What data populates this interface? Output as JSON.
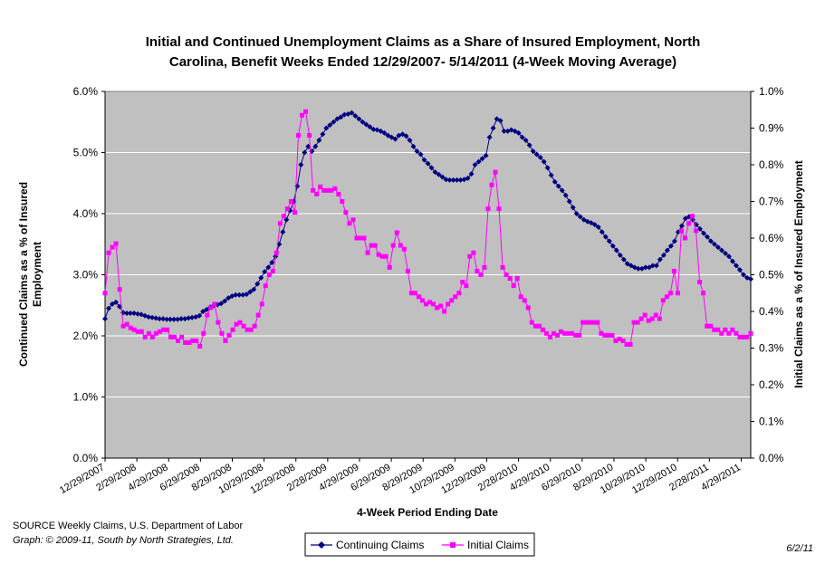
{
  "colors": {
    "plot_bg": "#c0c0c0",
    "continuing": "#000080",
    "initial": "#ff00ff",
    "grid": "#ffffff"
  },
  "chart_data": {
    "type": "line",
    "title": [
      "Initial and Continued Unemployment Claims as a Share of Insured Employment, North",
      "Carolina, Benefit Weeks Ended 12/29/2007- 5/14/2011 (4-Week Moving Average)"
    ],
    "xlabel": "4-Week Period Ending Date",
    "ylabel_left": [
      "Continued Claims as a % of Insured",
      "Employment"
    ],
    "ylabel_right": "Initial Claims as a % of Insured Employment",
    "ylim_left": [
      0,
      6
    ],
    "ylim_right": [
      0,
      1
    ],
    "left_ticks": [
      "0.0%",
      "1.0%",
      "2.0%",
      "3.0%",
      "4.0%",
      "5.0%",
      "6.0%"
    ],
    "right_ticks": [
      "0.0%",
      "0.1%",
      "0.2%",
      "0.3%",
      "0.4%",
      "0.5%",
      "0.6%",
      "0.7%",
      "0.8%",
      "0.9%",
      "1.0%"
    ],
    "x_tick_labels": [
      "12/29/2007",
      "2/29/2008",
      "4/29/2008",
      "6/29/2008",
      "8/29/2008",
      "10/29/2008",
      "12/29/2008",
      "2/28/2009",
      "4/29/2009",
      "6/29/2009",
      "8/29/2009",
      "10/29/2009",
      "12/29/2009",
      "2/28/2010",
      "4/29/2010",
      "6/29/2010",
      "8/29/2010",
      "10/29/2010",
      "12/29/2010",
      "2/28/2011",
      "4/29/2011"
    ],
    "x_start": "12/29/2007",
    "x_end": "5/14/2011",
    "grid": true,
    "legend_position": "bottom-center",
    "series": [
      {
        "name": "Continuing Claims",
        "axis": "left",
        "marker": "diamond",
        "values": [
          2.28,
          2.45,
          2.52,
          2.55,
          2.48,
          2.38,
          2.37,
          2.37,
          2.37,
          2.36,
          2.35,
          2.33,
          2.31,
          2.3,
          2.29,
          2.28,
          2.28,
          2.27,
          2.27,
          2.27,
          2.27,
          2.28,
          2.28,
          2.29,
          2.3,
          2.31,
          2.33,
          2.4,
          2.43,
          2.47,
          2.5,
          2.51,
          2.53,
          2.57,
          2.62,
          2.65,
          2.67,
          2.67,
          2.67,
          2.68,
          2.72,
          2.76,
          2.85,
          2.95,
          3.05,
          3.12,
          3.2,
          3.3,
          3.5,
          3.7,
          3.9,
          4.05,
          4.2,
          4.45,
          4.8,
          5.0,
          5.1,
          5.02,
          5.1,
          5.2,
          5.3,
          5.4,
          5.45,
          5.5,
          5.55,
          5.58,
          5.62,
          5.63,
          5.65,
          5.6,
          5.55,
          5.5,
          5.46,
          5.42,
          5.38,
          5.37,
          5.35,
          5.32,
          5.28,
          5.25,
          5.22,
          5.28,
          5.3,
          5.27,
          5.2,
          5.1,
          5.02,
          4.97,
          4.88,
          4.82,
          4.75,
          4.68,
          4.64,
          4.6,
          4.56,
          4.55,
          4.55,
          4.55,
          4.55,
          4.56,
          4.58,
          4.65,
          4.8,
          4.85,
          4.9,
          4.95,
          5.25,
          5.4,
          5.55,
          5.52,
          5.35,
          5.35,
          5.37,
          5.35,
          5.32,
          5.25,
          5.2,
          5.12,
          5.02,
          4.97,
          4.92,
          4.85,
          4.75,
          4.63,
          4.52,
          4.45,
          4.38,
          4.3,
          4.2,
          4.1,
          4.0,
          3.95,
          3.9,
          3.87,
          3.85,
          3.82,
          3.78,
          3.7,
          3.62,
          3.55,
          3.47,
          3.4,
          3.32,
          3.25,
          3.18,
          3.15,
          3.12,
          3.1,
          3.1,
          3.12,
          3.12,
          3.15,
          3.15,
          3.25,
          3.32,
          3.4,
          3.47,
          3.55,
          3.7,
          3.8,
          3.92,
          3.95,
          3.9,
          3.82,
          3.75,
          3.68,
          3.62,
          3.55,
          3.5,
          3.45,
          3.4,
          3.35,
          3.3,
          3.22,
          3.15,
          3.08,
          3.0,
          2.95,
          2.93
        ]
      },
      {
        "name": "Initial Claims",
        "axis": "right",
        "marker": "square",
        "values": [
          0.45,
          0.56,
          0.575,
          0.585,
          0.46,
          0.36,
          0.365,
          0.355,
          0.35,
          0.345,
          0.345,
          0.33,
          0.34,
          0.33,
          0.34,
          0.345,
          0.35,
          0.35,
          0.33,
          0.33,
          0.32,
          0.33,
          0.315,
          0.315,
          0.32,
          0.32,
          0.305,
          0.34,
          0.39,
          0.41,
          0.42,
          0.37,
          0.34,
          0.32,
          0.335,
          0.35,
          0.365,
          0.37,
          0.36,
          0.35,
          0.35,
          0.36,
          0.39,
          0.42,
          0.47,
          0.5,
          0.51,
          0.56,
          0.64,
          0.66,
          0.68,
          0.7,
          0.67,
          0.88,
          0.935,
          0.945,
          0.88,
          0.73,
          0.72,
          0.74,
          0.73,
          0.73,
          0.73,
          0.735,
          0.72,
          0.7,
          0.67,
          0.64,
          0.65,
          0.6,
          0.6,
          0.6,
          0.56,
          0.58,
          0.58,
          0.555,
          0.55,
          0.55,
          0.52,
          0.58,
          0.615,
          0.58,
          0.57,
          0.51,
          0.45,
          0.45,
          0.44,
          0.43,
          0.42,
          0.425,
          0.42,
          0.41,
          0.415,
          0.4,
          0.42,
          0.43,
          0.44,
          0.45,
          0.48,
          0.47,
          0.55,
          0.56,
          0.51,
          0.5,
          0.52,
          0.68,
          0.745,
          0.78,
          0.68,
          0.52,
          0.5,
          0.49,
          0.47,
          0.49,
          0.44,
          0.43,
          0.41,
          0.37,
          0.36,
          0.36,
          0.35,
          0.34,
          0.33,
          0.34,
          0.335,
          0.345,
          0.34,
          0.34,
          0.34,
          0.335,
          0.335,
          0.37,
          0.37,
          0.37,
          0.37,
          0.37,
          0.34,
          0.335,
          0.335,
          0.335,
          0.32,
          0.325,
          0.32,
          0.31,
          0.31,
          0.37,
          0.37,
          0.38,
          0.39,
          0.375,
          0.38,
          0.39,
          0.38,
          0.43,
          0.44,
          0.45,
          0.51,
          0.45,
          0.62,
          0.6,
          0.64,
          0.66,
          0.62,
          0.48,
          0.45,
          0.36,
          0.36,
          0.35,
          0.35,
          0.34,
          0.35,
          0.34,
          0.35,
          0.34,
          0.33,
          0.33,
          0.33,
          0.34
        ]
      }
    ]
  },
  "footer": {
    "source": "SOURCE   Weekly Claims, U.S. Department of Labor",
    "credit": "Graph: © 2009-11, South by North Strategies, Ltd.",
    "date": "6/2/11"
  }
}
